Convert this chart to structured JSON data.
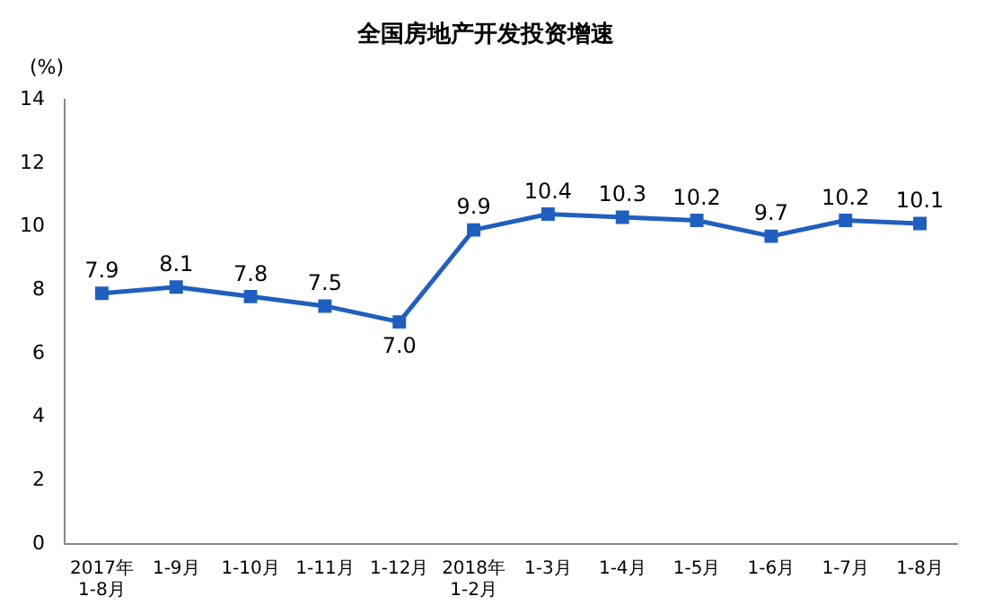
{
  "chart_data": {
    "type": "line",
    "title": "全国房地产开发投资增速",
    "ylabel": "(%)",
    "categories": [
      "2017年\n1-8月",
      "1-9月",
      "1-10月",
      "1-11月",
      "1-12月",
      "2018年\n1-2月",
      "1-3月",
      "1-4月",
      "1-5月",
      "1-6月",
      "1-7月",
      "1-8月"
    ],
    "series": [
      {
        "color": "#1f5fbf",
        "values": [
          7.9,
          8.1,
          7.8,
          7.5,
          7.0,
          9.9,
          10.4,
          10.3,
          10.2,
          9.7,
          10.2,
          10.1
        ],
        "value_labels": [
          "7.9",
          "8.1",
          "7.8",
          "7.5",
          "7.0",
          "9.9",
          "10.4",
          "10.3",
          "10.2",
          "9.7",
          "10.2",
          "10.1"
        ]
      }
    ],
    "ylim": [
      0,
      14
    ],
    "yticks": [
      0,
      2,
      4,
      6,
      8,
      10,
      12,
      14
    ],
    "marker": "square",
    "line_style": "solid",
    "grid": false,
    "legend": false
  }
}
